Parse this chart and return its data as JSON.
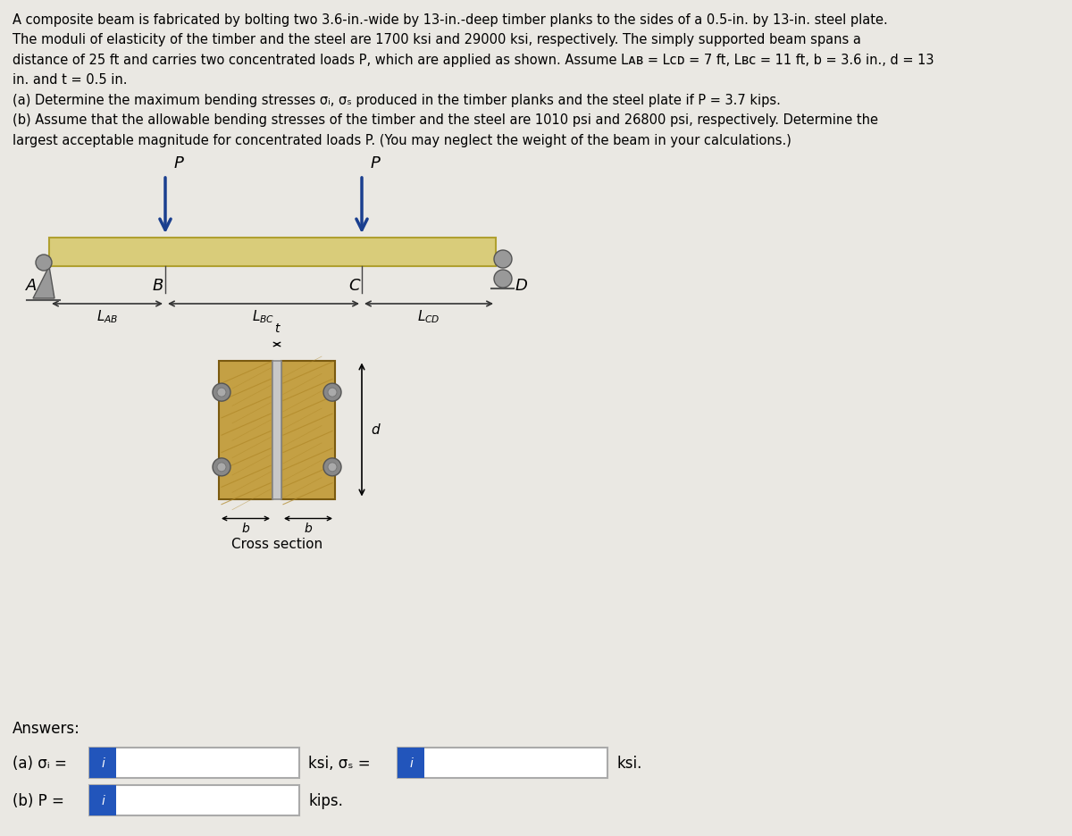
{
  "bg_color": "#eae8e3",
  "text_lines": [
    "A composite beam is fabricated by bolting two 3.6-in.-wide by 13-in.-deep timber planks to the sides of a 0.5-in. by 13-in. steel plate.",
    "The moduli of elasticity of the timber and the steel are 1700 ksi and 29000 ksi, respectively. The simply supported beam spans a",
    "distance of 25 ft and carries two concentrated loads P, which are applied as shown. Assume Lᴀʙ = Lᴄᴅ = 7 ft, Lʙᴄ = 11 ft, b = 3.6 in., d = 13",
    "in. and t = 0.5 in.",
    "(a) Determine the maximum bending stresses σᵢ, σₛ produced in the timber planks and the steel plate if P = 3.7 kips.",
    "(b) Assume that the allowable bending stresses of the timber and the steel are 1010 psi and 26800 psi, respectively. Determine the",
    "largest acceptable magnitude for concentrated loads P. (You may neglect the weight of the beam in your calculations.)"
  ],
  "beam_color": "#d9cc7a",
  "beam_edge_color": "#b0a030",
  "arrow_color": "#1a3f8f",
  "support_color": "#999999",
  "support_edge": "#555555",
  "dim_line_color": "#333333",
  "timber_face": "#c4a044",
  "timber_edge": "#7a5a10",
  "steel_face": "#c8c8c8",
  "steel_edge": "#888888",
  "bolt_face": "#888888",
  "bolt_edge": "#555555",
  "white": "#ffffff",
  "blue_btn": "#2255bb",
  "box_edge": "#aaaaaa"
}
